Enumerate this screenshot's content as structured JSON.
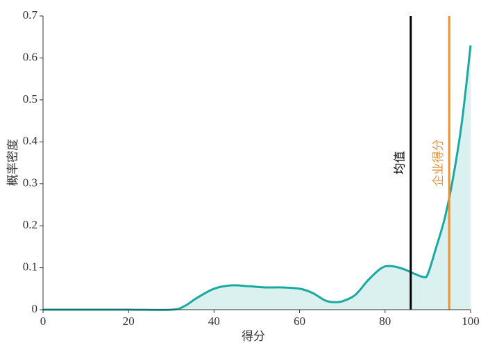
{
  "chart_data": {
    "type": "area",
    "x_label": "得分",
    "y_label": "概率密度",
    "x": [
      0,
      10,
      20,
      30,
      33,
      36,
      40,
      44,
      48,
      52,
      56,
      60,
      63,
      66,
      68,
      70,
      73,
      76,
      79,
      81,
      84,
      87,
      89,
      90,
      92,
      94,
      96,
      98,
      100
    ],
    "values": [
      0,
      0,
      0,
      0,
      0.008,
      0.028,
      0.05,
      0.058,
      0.056,
      0.053,
      0.053,
      0.05,
      0.04,
      0.022,
      0.018,
      0.02,
      0.035,
      0.07,
      0.098,
      0.104,
      0.098,
      0.085,
      0.078,
      0.085,
      0.15,
      0.22,
      0.32,
      0.45,
      0.63
    ],
    "color": "#1aa9a0",
    "xlim": [
      0,
      100
    ],
    "xticks": [
      0,
      20,
      40,
      60,
      80,
      100
    ],
    "ylim": [
      0,
      0.7
    ],
    "yticks": [
      0,
      0.1,
      0.2,
      0.3,
      0.4,
      0.5,
      0.6,
      0.7
    ],
    "markers": [
      {
        "label": "均值",
        "x": 86,
        "color": "#000000"
      },
      {
        "label": "企业得分",
        "x": 95,
        "color": "#e8913a"
      }
    ]
  }
}
